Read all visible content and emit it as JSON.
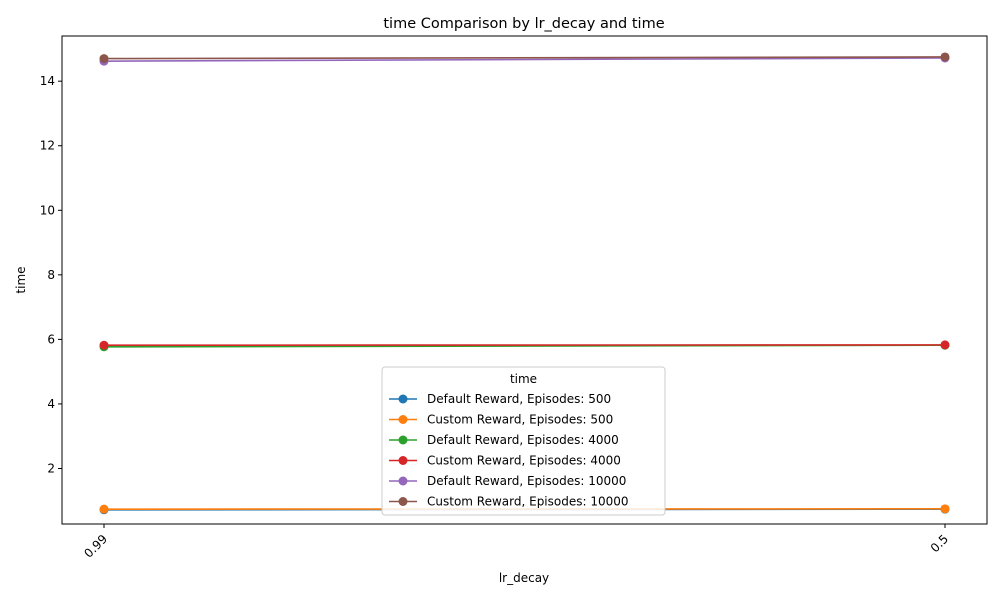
{
  "chart_data": {
    "type": "line",
    "title": "time Comparison by lr_decay and time",
    "xlabel": "lr_decay",
    "ylabel": "time",
    "categories": [
      "0.99",
      "0.5"
    ],
    "ylim": [
      0.28,
      15.4
    ],
    "yticks": [
      "2",
      "4",
      "6",
      "8",
      "10",
      "12",
      "14"
    ],
    "grid": false,
    "legend": {
      "title": "time",
      "placement": "lower-center"
    },
    "series": [
      {
        "name": "Default Reward, Episodes: 500",
        "color": "#1f77b4",
        "values": [
          0.72,
          0.74
        ]
      },
      {
        "name": "Custom Reward, Episodes: 500",
        "color": "#ff7f0e",
        "values": [
          0.74,
          0.75
        ]
      },
      {
        "name": "Default Reward, Episodes: 4000",
        "color": "#2ca02c",
        "values": [
          5.77,
          5.82
        ]
      },
      {
        "name": "Custom Reward, Episodes: 4000",
        "color": "#d62728",
        "values": [
          5.82,
          5.83
        ]
      },
      {
        "name": "Default Reward, Episodes: 10000",
        "color": "#9467bd",
        "values": [
          14.62,
          14.72
        ]
      },
      {
        "name": "Custom Reward, Episodes: 10000",
        "color": "#8c564b",
        "values": [
          14.7,
          14.75
        ]
      }
    ]
  }
}
